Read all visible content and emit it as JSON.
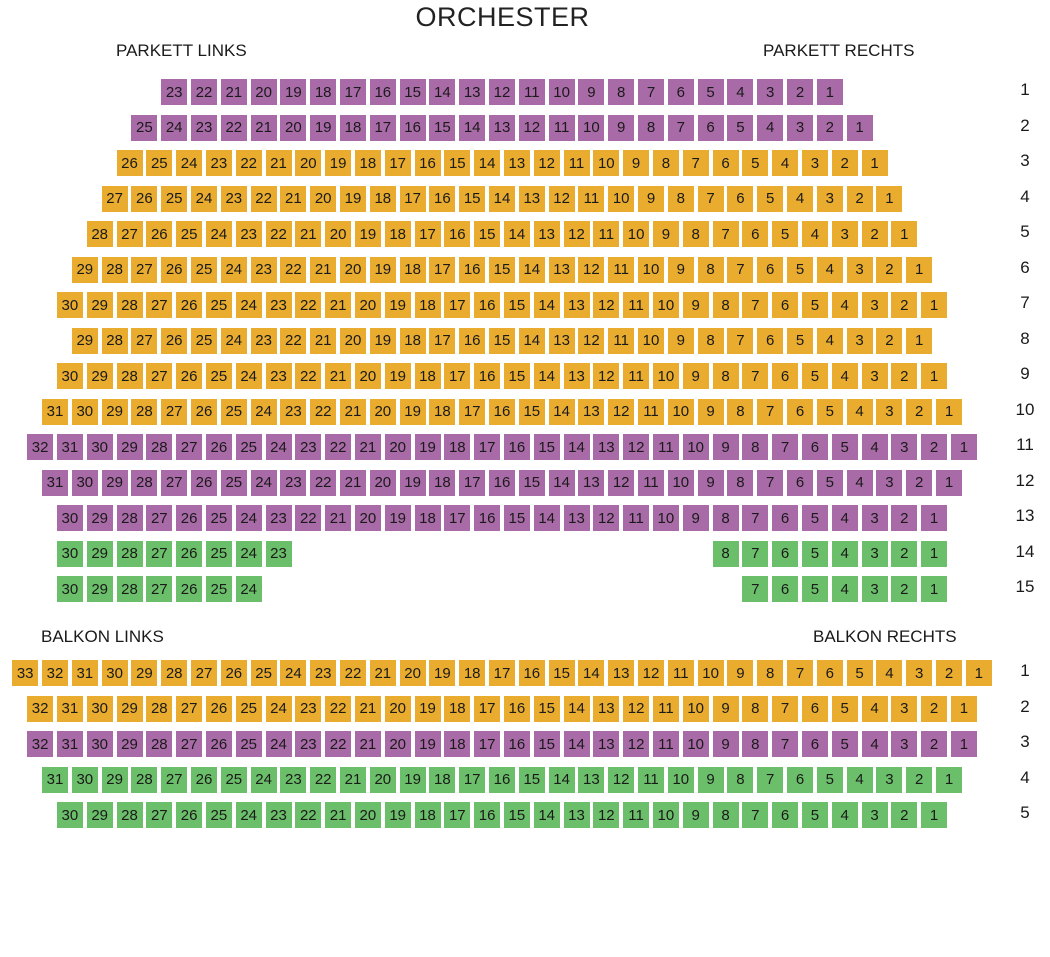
{
  "title": "ORCHESTER",
  "labels": {
    "parkett_links": "PARKETT LINKS",
    "parkett_rechts": "PARKETT RECHTS",
    "balkon_links": "BALKON LINKS",
    "balkon_rechts": "BALKON RECHTS"
  },
  "colors": {
    "purple": "#a96ba7",
    "orange": "#e9ac2f",
    "green": "#6cbf6a"
  },
  "parkett": {
    "rows": [
      {
        "row": "1",
        "seats": 23,
        "category": "purple"
      },
      {
        "row": "2",
        "seats": 25,
        "category": "purple"
      },
      {
        "row": "3",
        "seats": 26,
        "category": "orange"
      },
      {
        "row": "4",
        "seats": 27,
        "category": "orange"
      },
      {
        "row": "5",
        "seats": 28,
        "category": "orange"
      },
      {
        "row": "6",
        "seats": 29,
        "category": "orange"
      },
      {
        "row": "7",
        "seats": 30,
        "category": "orange"
      },
      {
        "row": "8",
        "seats": 29,
        "category": "orange"
      },
      {
        "row": "9",
        "seats": 30,
        "category": "orange"
      },
      {
        "row": "10",
        "seats": 31,
        "category": "orange"
      },
      {
        "row": "11",
        "seats": 32,
        "category": "purple"
      },
      {
        "row": "12",
        "seats": 31,
        "category": "purple"
      },
      {
        "row": "13",
        "seats": 30,
        "category": "purple"
      },
      {
        "row": "14",
        "left_seats": [
          30,
          29,
          28,
          27,
          26,
          25,
          24,
          23
        ],
        "right_seats": [
          8,
          7,
          6,
          5,
          4,
          3,
          2,
          1
        ],
        "category": "green"
      },
      {
        "row": "15",
        "left_seats": [
          30,
          29,
          28,
          27,
          26,
          25,
          24
        ],
        "right_seats": [
          7,
          6,
          5,
          4,
          3,
          2,
          1
        ],
        "category": "green"
      }
    ]
  },
  "balkon": {
    "rows": [
      {
        "row": "1",
        "seats": 33,
        "category": "orange"
      },
      {
        "row": "2",
        "seats": 32,
        "category": "orange"
      },
      {
        "row": "3",
        "seats": 32,
        "category": "purple"
      },
      {
        "row": "4",
        "seats": 31,
        "category": "green"
      },
      {
        "row": "5",
        "seats": 30,
        "category": "green"
      }
    ]
  }
}
